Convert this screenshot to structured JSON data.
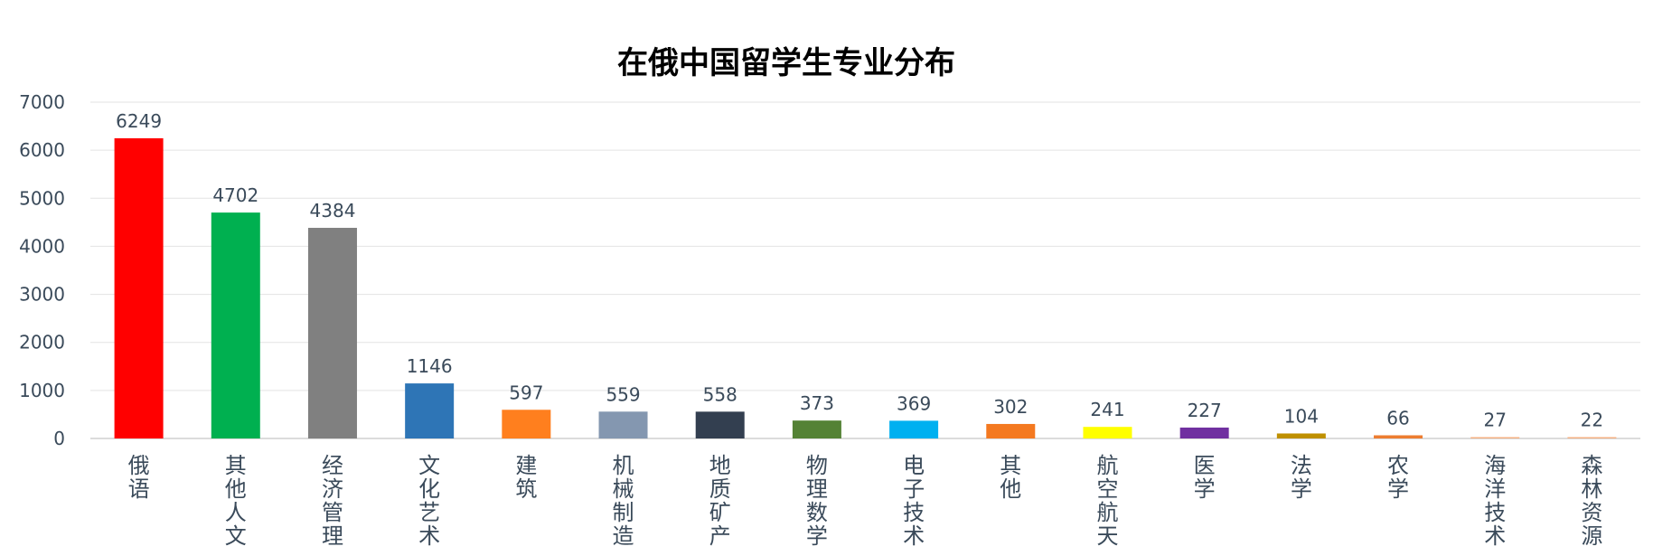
{
  "chart_data": {
    "type": "bar",
    "title": "在俄中国留学生专业分布",
    "xlabel": "",
    "ylabel": "",
    "ylim": [
      0,
      7000
    ],
    "yticks": [
      "0",
      "1000",
      "2000",
      "3000",
      "4000",
      "5000",
      "6000",
      "7000"
    ],
    "grid": true,
    "legend": "none",
    "categories": [
      "俄语",
      "其他人文",
      "经济管理",
      "文化艺术",
      "建筑",
      "机械制造",
      "地质矿产",
      "物理数学",
      "电子技术",
      "其他",
      "航空航天",
      "医学",
      "法学",
      "农学",
      "海洋技术",
      "森林资源"
    ],
    "values": [
      6249,
      4702,
      4384,
      1146,
      597,
      559,
      558,
      373,
      369,
      302,
      241,
      227,
      104,
      66,
      27,
      22
    ],
    "colors": [
      "#ff0000",
      "#00b050",
      "#808080",
      "#2e75b6",
      "#ff7f1e",
      "#8497b0",
      "#333f50",
      "#548235",
      "#00b0f0",
      "#f47920",
      "#ffff00",
      "#7030a0",
      "#bf9000",
      "#ed7d31",
      "#f4b183",
      "#f4b183"
    ]
  }
}
